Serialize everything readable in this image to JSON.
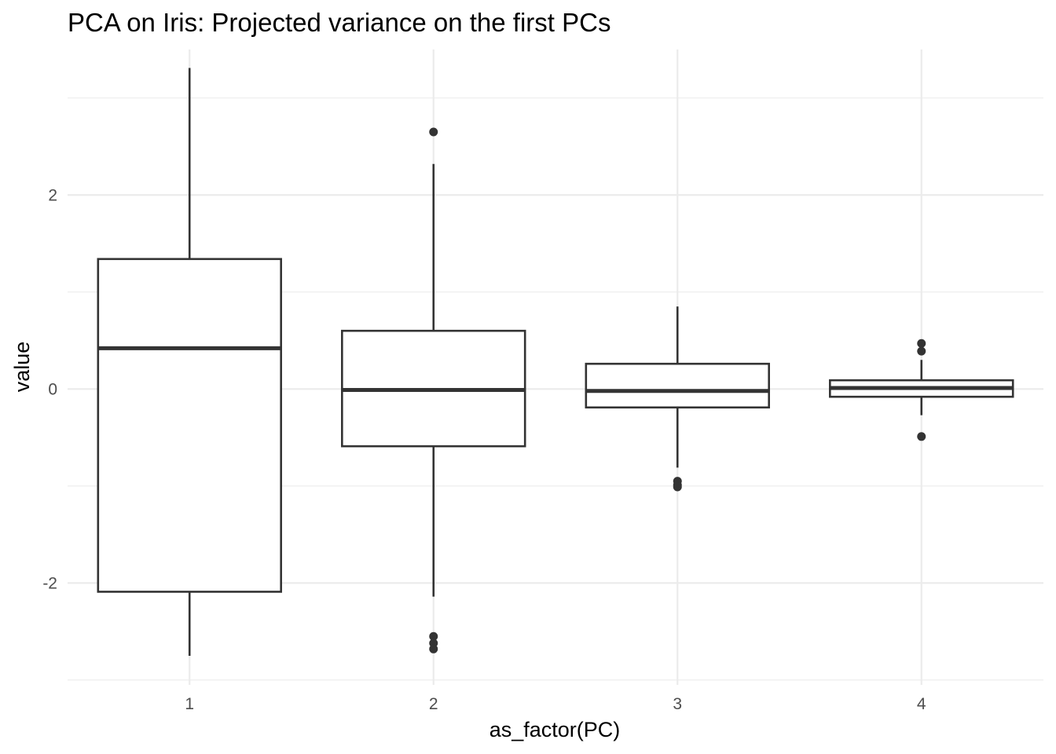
{
  "chart_data": {
    "type": "boxplot",
    "title": "PCA on Iris: Projected variance on the first PCs",
    "xlabel": "as_factor(PC)",
    "ylabel": "value",
    "categories": [
      "1",
      "2",
      "3",
      "4"
    ],
    "ylim": [
      -3.05,
      3.5
    ],
    "y_major_ticks": [
      -2,
      0,
      2
    ],
    "y_tick_labels": [
      "-2",
      "0",
      "2"
    ],
    "y_minor_ticks": [
      -3,
      -1,
      1,
      3
    ],
    "grid": true,
    "legend": "none",
    "colors": {
      "box_line": "#333333",
      "box_fill": "#ffffff",
      "grid": "#ebebeb"
    },
    "boxes": [
      {
        "category": "1",
        "whisker_low": -2.75,
        "q1": -2.09,
        "median": 0.42,
        "q3": 1.34,
        "whisker_high": 3.31,
        "outliers": []
      },
      {
        "category": "2",
        "whisker_low": -2.14,
        "q1": -0.59,
        "median": -0.01,
        "q3": 0.6,
        "whisker_high": 2.32,
        "outliers": [
          2.65,
          -2.55,
          -2.62,
          -2.68
        ]
      },
      {
        "category": "3",
        "whisker_low": -0.81,
        "q1": -0.19,
        "median": -0.02,
        "q3": 0.26,
        "whisker_high": 0.85,
        "outliers": [
          -0.95,
          -0.99,
          -1.01
        ]
      },
      {
        "category": "4",
        "whisker_low": -0.27,
        "q1": -0.08,
        "median": 0.01,
        "q3": 0.09,
        "whisker_high": 0.3,
        "outliers": [
          0.47,
          0.39,
          -0.49
        ]
      }
    ]
  }
}
